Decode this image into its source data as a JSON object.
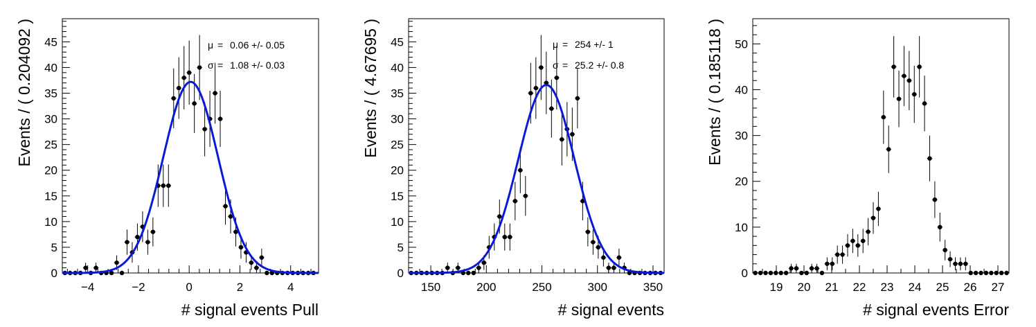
{
  "chart_data": [
    {
      "type": "scatter",
      "xlabel": "# signal events Pull",
      "ylabel": "Events / ( 0.204092 )",
      "xlim": [
        -5,
        5.1
      ],
      "ylim": [
        0,
        49.5
      ],
      "xticks": [
        -4,
        -2,
        0,
        2,
        4
      ],
      "xtick_labels": [
        "−4",
        "−2",
        "0",
        "2",
        "4"
      ],
      "yticks": [
        0,
        5,
        10,
        15,
        20,
        25,
        30,
        35,
        40,
        45
      ],
      "ytick_labels": [
        "0",
        "5",
        "10",
        "15",
        "20",
        "25",
        "30",
        "35",
        "40",
        "45"
      ],
      "xstart": -5,
      "binw": 0.204092,
      "counts": [
        0,
        0,
        0,
        0,
        1,
        0,
        1,
        0,
        0,
        0,
        2,
        0,
        6,
        4,
        7,
        9,
        6,
        8,
        17,
        17,
        17,
        34,
        36,
        38,
        39,
        33,
        40,
        28,
        30,
        35,
        30,
        13,
        11,
        8,
        5,
        4,
        2,
        1,
        3,
        0,
        0,
        0,
        0,
        0,
        0,
        0,
        0,
        0,
        0,
        0
      ],
      "fit": {
        "mean": 0.06,
        "sigma": 1.08,
        "peak": 37.2
      },
      "stats": [
        {
          "sym": "μ",
          "eq": "=",
          "text": "0.06 +/- 0.05"
        },
        {
          "sym": "σ",
          "eq": "=",
          "text": "1.08 +/- 0.03"
        }
      ]
    },
    {
      "type": "scatter",
      "xlabel": "# signal events",
      "ylabel": "Events / ( 4.67695 )",
      "xlim": [
        130,
        360
      ],
      "ylim": [
        0,
        49.5
      ],
      "xticks": [
        150,
        200,
        250,
        300,
        350
      ],
      "xtick_labels": [
        "150",
        "200",
        "250",
        "300",
        "350"
      ],
      "yticks": [
        0,
        5,
        10,
        15,
        20,
        25,
        30,
        35,
        40,
        45
      ],
      "ytick_labels": [
        "0",
        "5",
        "10",
        "15",
        "20",
        "25",
        "30",
        "35",
        "40",
        "45"
      ],
      "xstart": 130,
      "binw": 4.67695,
      "counts": [
        0,
        0,
        0,
        0,
        0,
        0,
        0,
        1,
        0,
        1,
        0,
        0,
        0,
        1,
        2,
        5,
        7,
        11,
        7,
        7,
        14,
        20,
        15,
        35,
        36,
        40,
        37,
        32,
        38,
        26,
        28,
        27,
        34,
        14,
        8,
        6,
        5,
        3,
        1,
        1,
        3,
        1,
        0,
        0,
        0,
        0,
        0,
        0,
        0
      ],
      "fit": {
        "mean": 254,
        "sigma": 25.2,
        "peak": 36.6
      },
      "stats": [
        {
          "sym": "μ",
          "eq": "=",
          "text": "254 +/- 1"
        },
        {
          "sym": "σ",
          "eq": "=",
          "text": "25.2 +/- 0.8"
        }
      ]
    },
    {
      "type": "scatter",
      "xlabel": "# signal events Error",
      "ylabel": "Events / ( 0.185118 )",
      "xlim": [
        18.15,
        27.4
      ],
      "ylim": [
        0,
        55.5
      ],
      "xticks": [
        19,
        20,
        21,
        22,
        23,
        24,
        25,
        26,
        27
      ],
      "xtick_labels": [
        "19",
        "20",
        "21",
        "22",
        "23",
        "24",
        "25",
        "26",
        "27"
      ],
      "yticks": [
        0,
        10,
        20,
        30,
        40,
        50
      ],
      "ytick_labels": [
        "0",
        "10",
        "20",
        "30",
        "40",
        "50"
      ],
      "xstart": 18.15,
      "binw": 0.185118,
      "counts": [
        0,
        0,
        0,
        0,
        0,
        0,
        0,
        1,
        1,
        0,
        0,
        1,
        1,
        0,
        2,
        2,
        4,
        4,
        6,
        7,
        6,
        7,
        9,
        12,
        14,
        34,
        27,
        45,
        38,
        43,
        42,
        39,
        45,
        37,
        25,
        16,
        10,
        5,
        3,
        2,
        2,
        2,
        0,
        0,
        0,
        0,
        0,
        0,
        0,
        0
      ]
    }
  ]
}
